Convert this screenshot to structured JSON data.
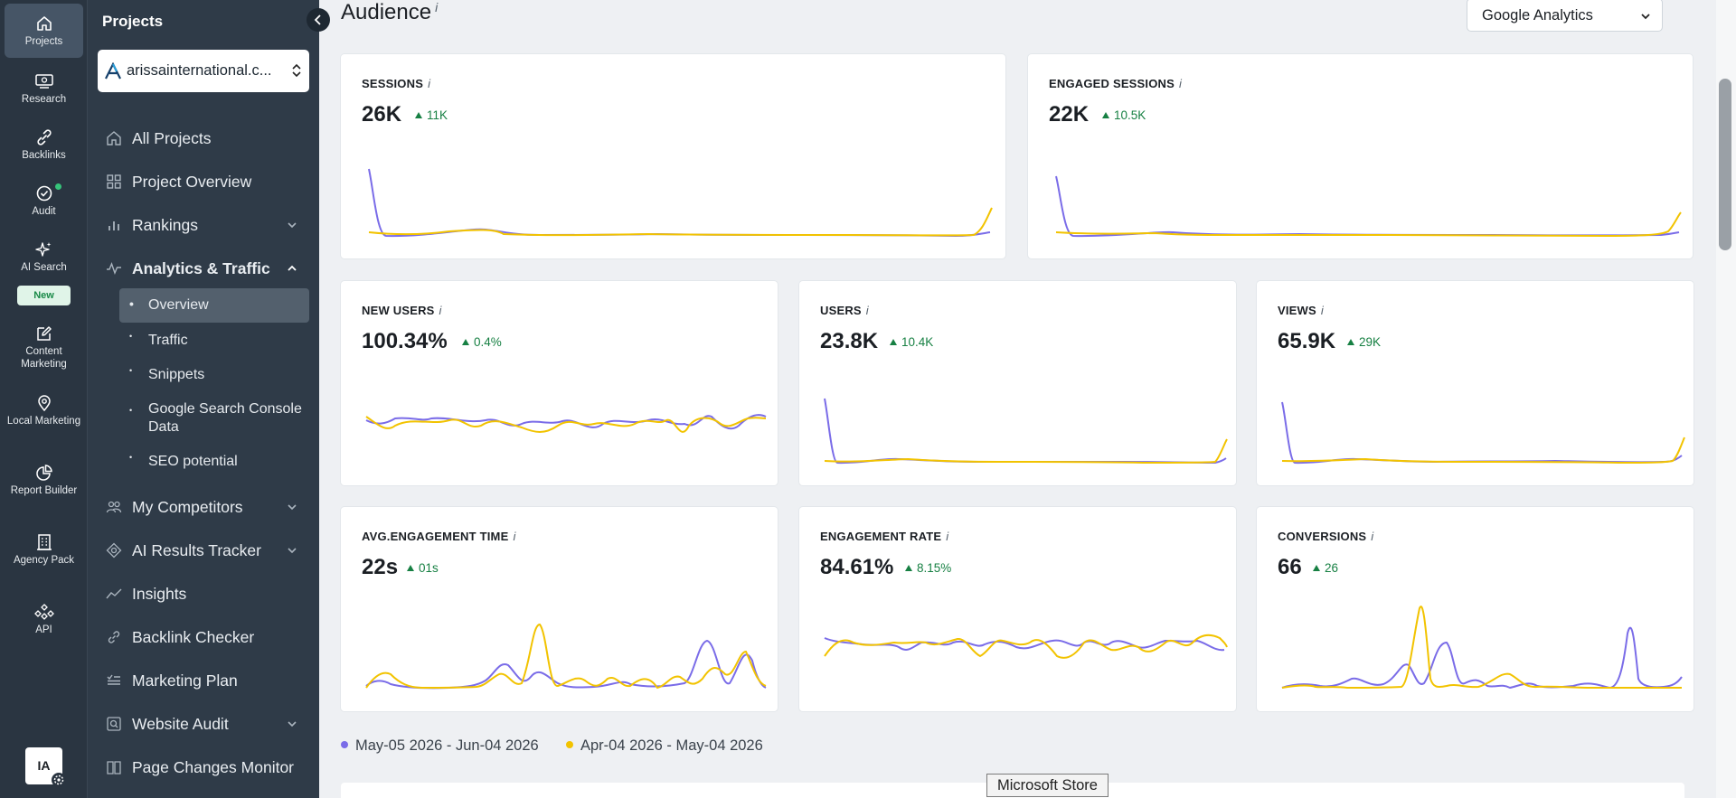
{
  "rail": {
    "items": [
      {
        "label": "Projects",
        "icon": "home-icon",
        "active": true
      },
      {
        "label": "Research",
        "icon": "monitor-icon"
      },
      {
        "label": "Backlinks",
        "icon": "link-icon"
      },
      {
        "label": "Audit",
        "icon": "check-circle-icon"
      },
      {
        "label": "AI Search",
        "icon": "sparkle-icon"
      },
      {
        "label": "Content Marketing",
        "icon": "edit-icon"
      },
      {
        "label": "Local Marketing",
        "icon": "map-pin-icon"
      },
      {
        "label": "Report Builder",
        "icon": "pie-chart-icon"
      },
      {
        "label": "Agency Pack",
        "icon": "building-icon"
      },
      {
        "label": "API",
        "icon": "api-icon"
      }
    ],
    "new_badge": "New",
    "avatar": "IA"
  },
  "sidebar": {
    "title": "Projects",
    "project": "arissainternational.c...",
    "nav": [
      {
        "label": "All Projects",
        "icon": "home-icon"
      },
      {
        "label": "Project Overview",
        "icon": "grid-icon"
      },
      {
        "label": "Rankings",
        "icon": "bar-chart-icon",
        "expandable": true
      },
      {
        "label": "Analytics & Traffic",
        "icon": "activity-icon",
        "expanded": true
      },
      {
        "label": "My Competitors",
        "icon": "users-icon",
        "expandable": true
      },
      {
        "label": "AI Results Tracker",
        "icon": "target-icon",
        "expandable": true
      },
      {
        "label": "Insights",
        "icon": "trend-icon"
      },
      {
        "label": "Backlink Checker",
        "icon": "link-icon"
      },
      {
        "label": "Marketing Plan",
        "icon": "checklist-icon"
      },
      {
        "label": "Website Audit",
        "icon": "audit-icon",
        "expandable": true
      },
      {
        "label": "Page Changes Monitor",
        "icon": "book-icon"
      }
    ],
    "sub": [
      {
        "label": "Overview",
        "active": true
      },
      {
        "label": "Traffic"
      },
      {
        "label": "Snippets"
      },
      {
        "label": "Google Search Console Data"
      },
      {
        "label": "SEO potential"
      }
    ]
  },
  "main": {
    "title": "Audience",
    "info": "i",
    "source": "Google Analytics",
    "cards": [
      {
        "title": "SESSIONS",
        "value": "26K",
        "delta": "11K"
      },
      {
        "title": "ENGAGED SESSIONS",
        "value": "22K",
        "delta": "10.5K"
      },
      {
        "title": "NEW USERS",
        "value": "100.34%",
        "delta": "0.4%"
      },
      {
        "title": "USERS",
        "value": "23.8K",
        "delta": "10.4K"
      },
      {
        "title": "VIEWS",
        "value": "65.9K",
        "delta": "29K"
      },
      {
        "title": "AVG.ENGAGEMENT TIME",
        "value": "22s",
        "delta": "01s"
      },
      {
        "title": "ENGAGEMENT RATE",
        "value": "84.61%",
        "delta": "8.15%"
      },
      {
        "title": "CONVERSIONS",
        "value": "66",
        "delta": "26"
      }
    ],
    "legend": [
      {
        "label": "May-05 2026 - Jun-04 2026",
        "color": "#7a6ce8"
      },
      {
        "label": "Apr-04 2026 - May-04 2026",
        "color": "#f2c300"
      }
    ],
    "tooltip": "Microsoft Store"
  },
  "colors": {
    "current": "#7a6ce8",
    "previous": "#f2c300",
    "up": "#178043"
  }
}
